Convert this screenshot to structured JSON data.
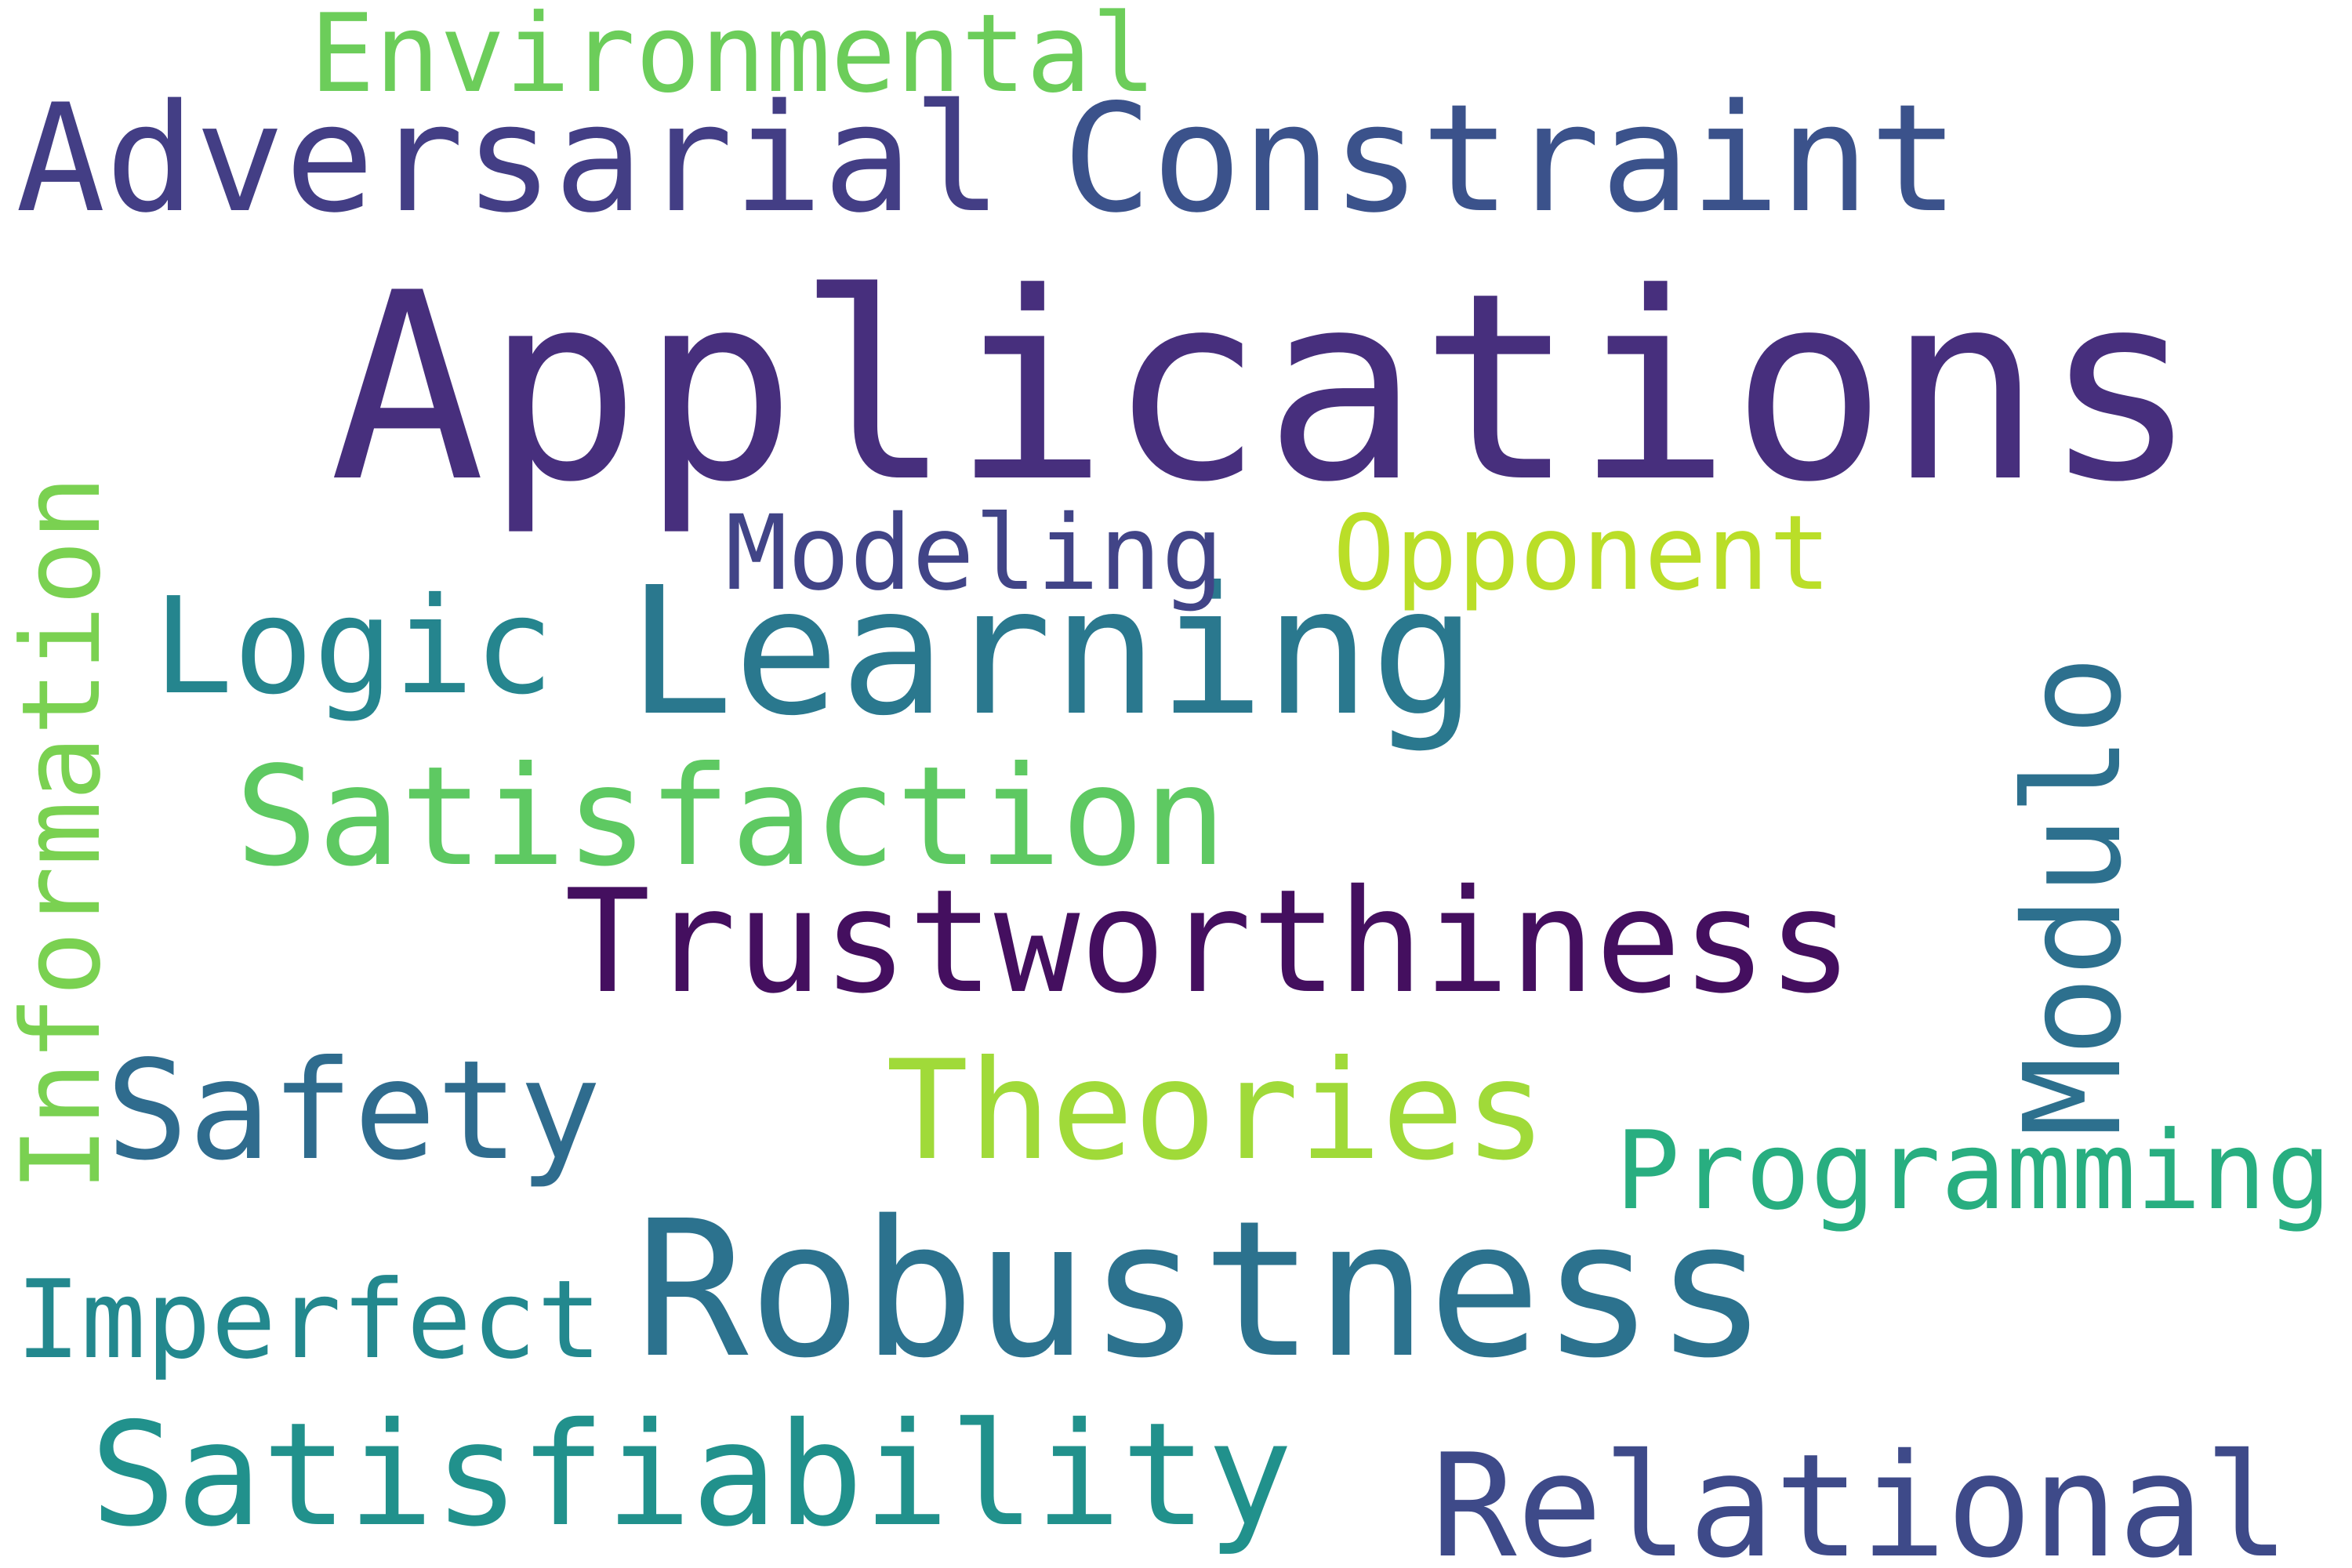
{
  "words": {
    "applications": {
      "text": "Applications",
      "color": "#472f7d"
    },
    "robustness": {
      "text": "Robustness",
      "color": "#2c728e"
    },
    "learning": {
      "text": "Learning",
      "color": "#2a788e"
    },
    "constraint": {
      "text": "Constraint",
      "color": "#3b528b"
    },
    "adversarial": {
      "text": "Adversarial",
      "color": "#433e85"
    },
    "trustworthiness": {
      "text": "Trustworthiness",
      "color": "#440f5f"
    },
    "satisfiability": {
      "text": "Satisfiability",
      "color": "#21918c"
    },
    "relational": {
      "text": "Relational",
      "color": "#3e4a89"
    },
    "satisfaction": {
      "text": "Satisfaction",
      "color": "#5ec962"
    },
    "theories": {
      "text": "Theories",
      "color": "#a0da39"
    },
    "safety": {
      "text": "Safety",
      "color": "#2f6c8e"
    },
    "logic": {
      "text": "Logic",
      "color": "#25858e"
    },
    "modulo": {
      "text": "Modulo",
      "color": "#2d708e"
    },
    "information": {
      "text": "Information",
      "color": "#7ad151"
    },
    "programming": {
      "text": "Programming",
      "color": "#28ae80"
    },
    "imperfect": {
      "text": "Imperfect",
      "color": "#23888e"
    },
    "environmental": {
      "text": "Environmental",
      "color": "#6ccd5a"
    },
    "opponent": {
      "text": "Opponent",
      "color": "#bade28"
    },
    "modeling": {
      "text": "Modeling",
      "color": "#414487"
    }
  }
}
